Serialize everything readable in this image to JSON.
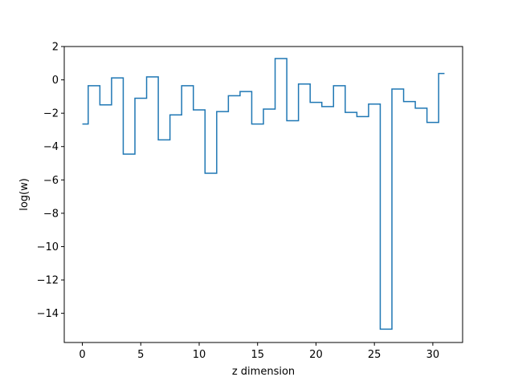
{
  "chart_data": {
    "type": "line",
    "drawstyle": "steps-mid",
    "title": "",
    "xlabel": "z dimension",
    "ylabel": "log(w)",
    "xlim": [
      -1.55,
      32.55
    ],
    "ylim": [
      -15.75,
      2
    ],
    "xticks": [
      0,
      5,
      10,
      15,
      20,
      25,
      30
    ],
    "yticks": [
      2,
      0,
      -2,
      -4,
      -6,
      -8,
      -10,
      -12,
      -14
    ],
    "ytick_labels": [
      "2",
      "0",
      "−2",
      "−4",
      "−6",
      "−8",
      "−10",
      "−12",
      "−14"
    ],
    "grid": false,
    "colors": {
      "series": "#1f77b4",
      "axes": "#000000",
      "background": "#ffffff"
    },
    "series": [
      {
        "x": [
          0,
          1,
          2,
          3,
          4,
          5,
          6,
          7,
          8,
          9,
          10,
          11,
          12,
          13,
          14,
          15,
          16,
          17,
          18,
          19,
          20,
          21,
          22,
          23,
          24,
          25,
          26,
          27,
          28,
          29,
          30,
          31
        ],
        "values": [
          -2.65,
          -0.35,
          -1.5,
          0.12,
          -4.45,
          -1.1,
          0.18,
          -3.6,
          -2.1,
          -0.35,
          -1.8,
          -5.6,
          -1.9,
          -0.95,
          -0.7,
          -2.65,
          -1.75,
          1.28,
          -2.45,
          -0.25,
          -1.35,
          -1.6,
          -0.35,
          -1.95,
          -2.2,
          -1.45,
          -14.95,
          -0.55,
          -1.3,
          -1.7,
          -2.55,
          0.38
        ]
      }
    ]
  }
}
